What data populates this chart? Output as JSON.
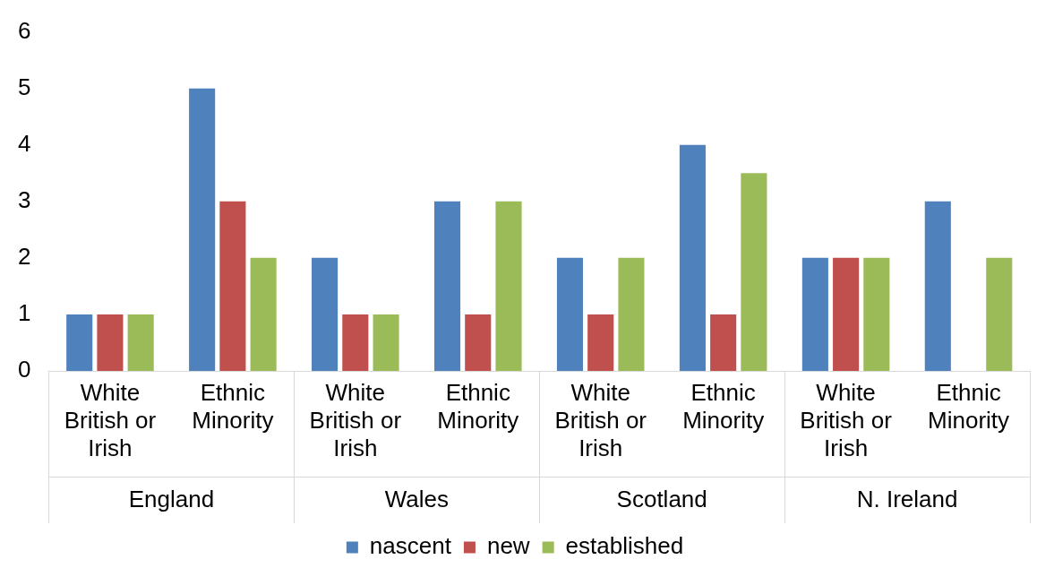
{
  "chart_data": {
    "type": "bar",
    "categories": [
      "White British or Irish",
      "Ethnic Minority",
      "White British or Irish",
      "Ethnic Minority",
      "White British or Irish",
      "Ethnic Minority",
      "White British or Irish",
      "Ethnic Minority"
    ],
    "series": [
      {
        "name": "nascent",
        "color": "#4f81bd",
        "values": [
          1,
          5,
          2,
          3,
          2,
          4,
          2,
          3
        ]
      },
      {
        "name": "new",
        "color": "#c0504d",
        "values": [
          1,
          3,
          1,
          1,
          1,
          1,
          2,
          0
        ]
      },
      {
        "name": "established",
        "color": "#9bbb59",
        "values": [
          1,
          2,
          1,
          3,
          2,
          3.5,
          2,
          2
        ]
      }
    ],
    "annotations": [
      "England",
      "Wales",
      "Scotland",
      "N. Ireland"
    ],
    "ylim": [
      0,
      6
    ],
    "yticks": [
      0,
      1,
      2,
      3,
      4,
      5,
      6
    ],
    "grid": false,
    "legend": "bottom"
  }
}
